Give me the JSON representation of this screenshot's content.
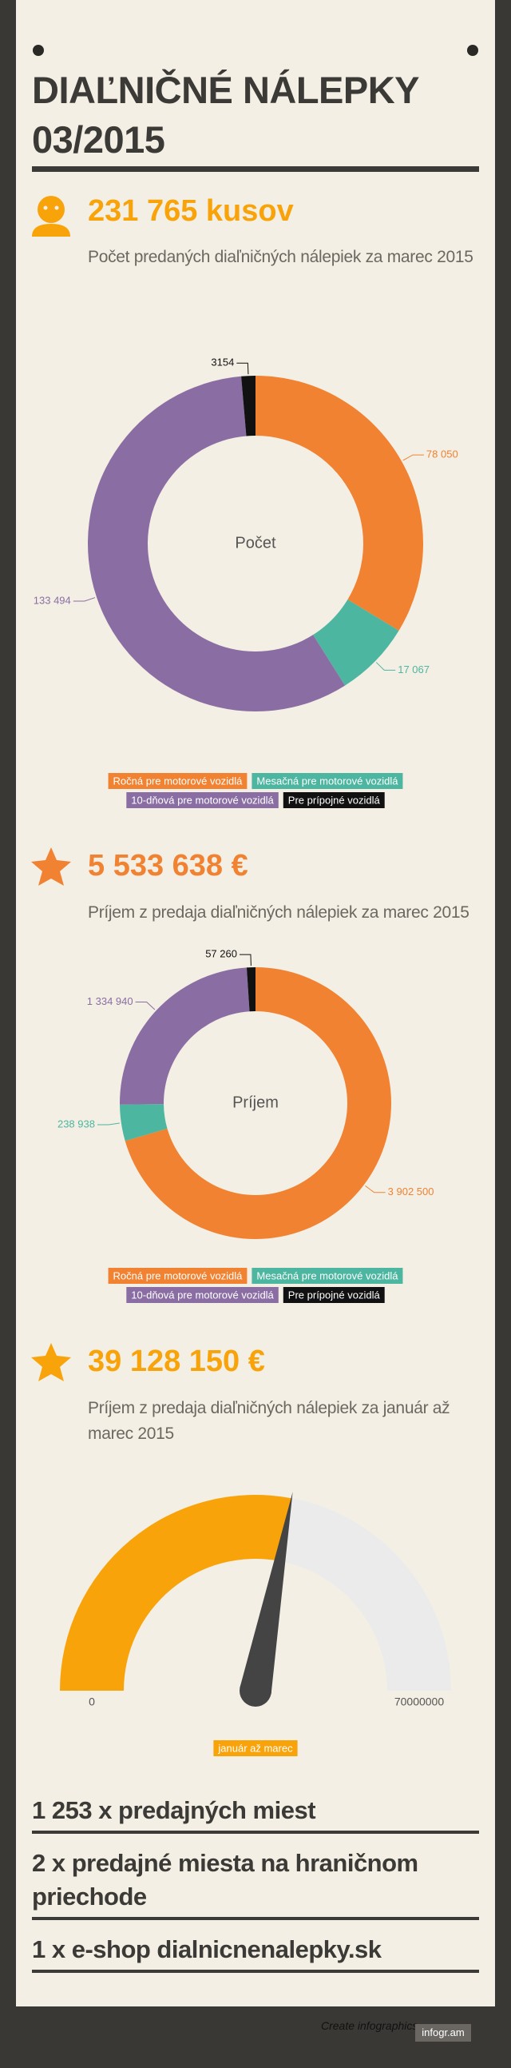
{
  "header": {
    "title": "DIAĽNIČNÉ NÁLEPKY 03/2015"
  },
  "stats": [
    {
      "value": "231 765 kusov",
      "description": "Počet predaných diaľničných nálepiek za marec 2015"
    },
    {
      "value": "5 533 638 €",
      "description": "Príjem z predaja diaľničných nálepiek za marec 2015"
    },
    {
      "value": "39 128 150 €",
      "description": "Príjem z predaja diaľničných nálepiek za január až marec 2015"
    }
  ],
  "chart_data": [
    {
      "type": "donut",
      "center_label": "Počet",
      "categories": [
        "Ročná pre motorové vozidlá",
        "Mesačná pre motorové vozidlá",
        "10-dňová pre motorové vozidlá",
        "Pre prípojné vozidlá"
      ],
      "values": [
        78050,
        17067,
        133494,
        3154
      ],
      "value_labels": [
        "78 050",
        "17 067",
        "133 494",
        "3154"
      ],
      "colors": [
        "#f08232",
        "#4db6a0",
        "#8a6ea3",
        "#111111"
      ]
    },
    {
      "type": "donut",
      "center_label": "Príjem",
      "categories": [
        "Ročná pre motorové vozidlá",
        "Mesačná pre motorové vozidlá",
        "10-dňová pre motorové vozidlá",
        "Pre prípojné vozidlá"
      ],
      "values": [
        3902500,
        238938,
        1334940,
        57260
      ],
      "value_labels": [
        "3 902 500",
        "238 938",
        "1 334 940",
        "57 260"
      ],
      "colors": [
        "#f08232",
        "#4db6a0",
        "#8a6ea3",
        "#111111"
      ]
    },
    {
      "type": "gauge",
      "series": [
        {
          "name": "január až marec",
          "color": "#f9a30b",
          "values": [
            39128150
          ]
        }
      ],
      "ylim": [
        0,
        70000000
      ],
      "yticks": [
        0,
        70000000
      ],
      "track_color": "#ebebeb"
    }
  ],
  "facts": [
    "1 253 x predajných miest",
    "2 x predajné miesta na hraničnom priechode",
    "1 x e-shop dialnicnenalepky.sk"
  ],
  "footer": {
    "text": "Create infographics",
    "brand": "infogr.am"
  }
}
